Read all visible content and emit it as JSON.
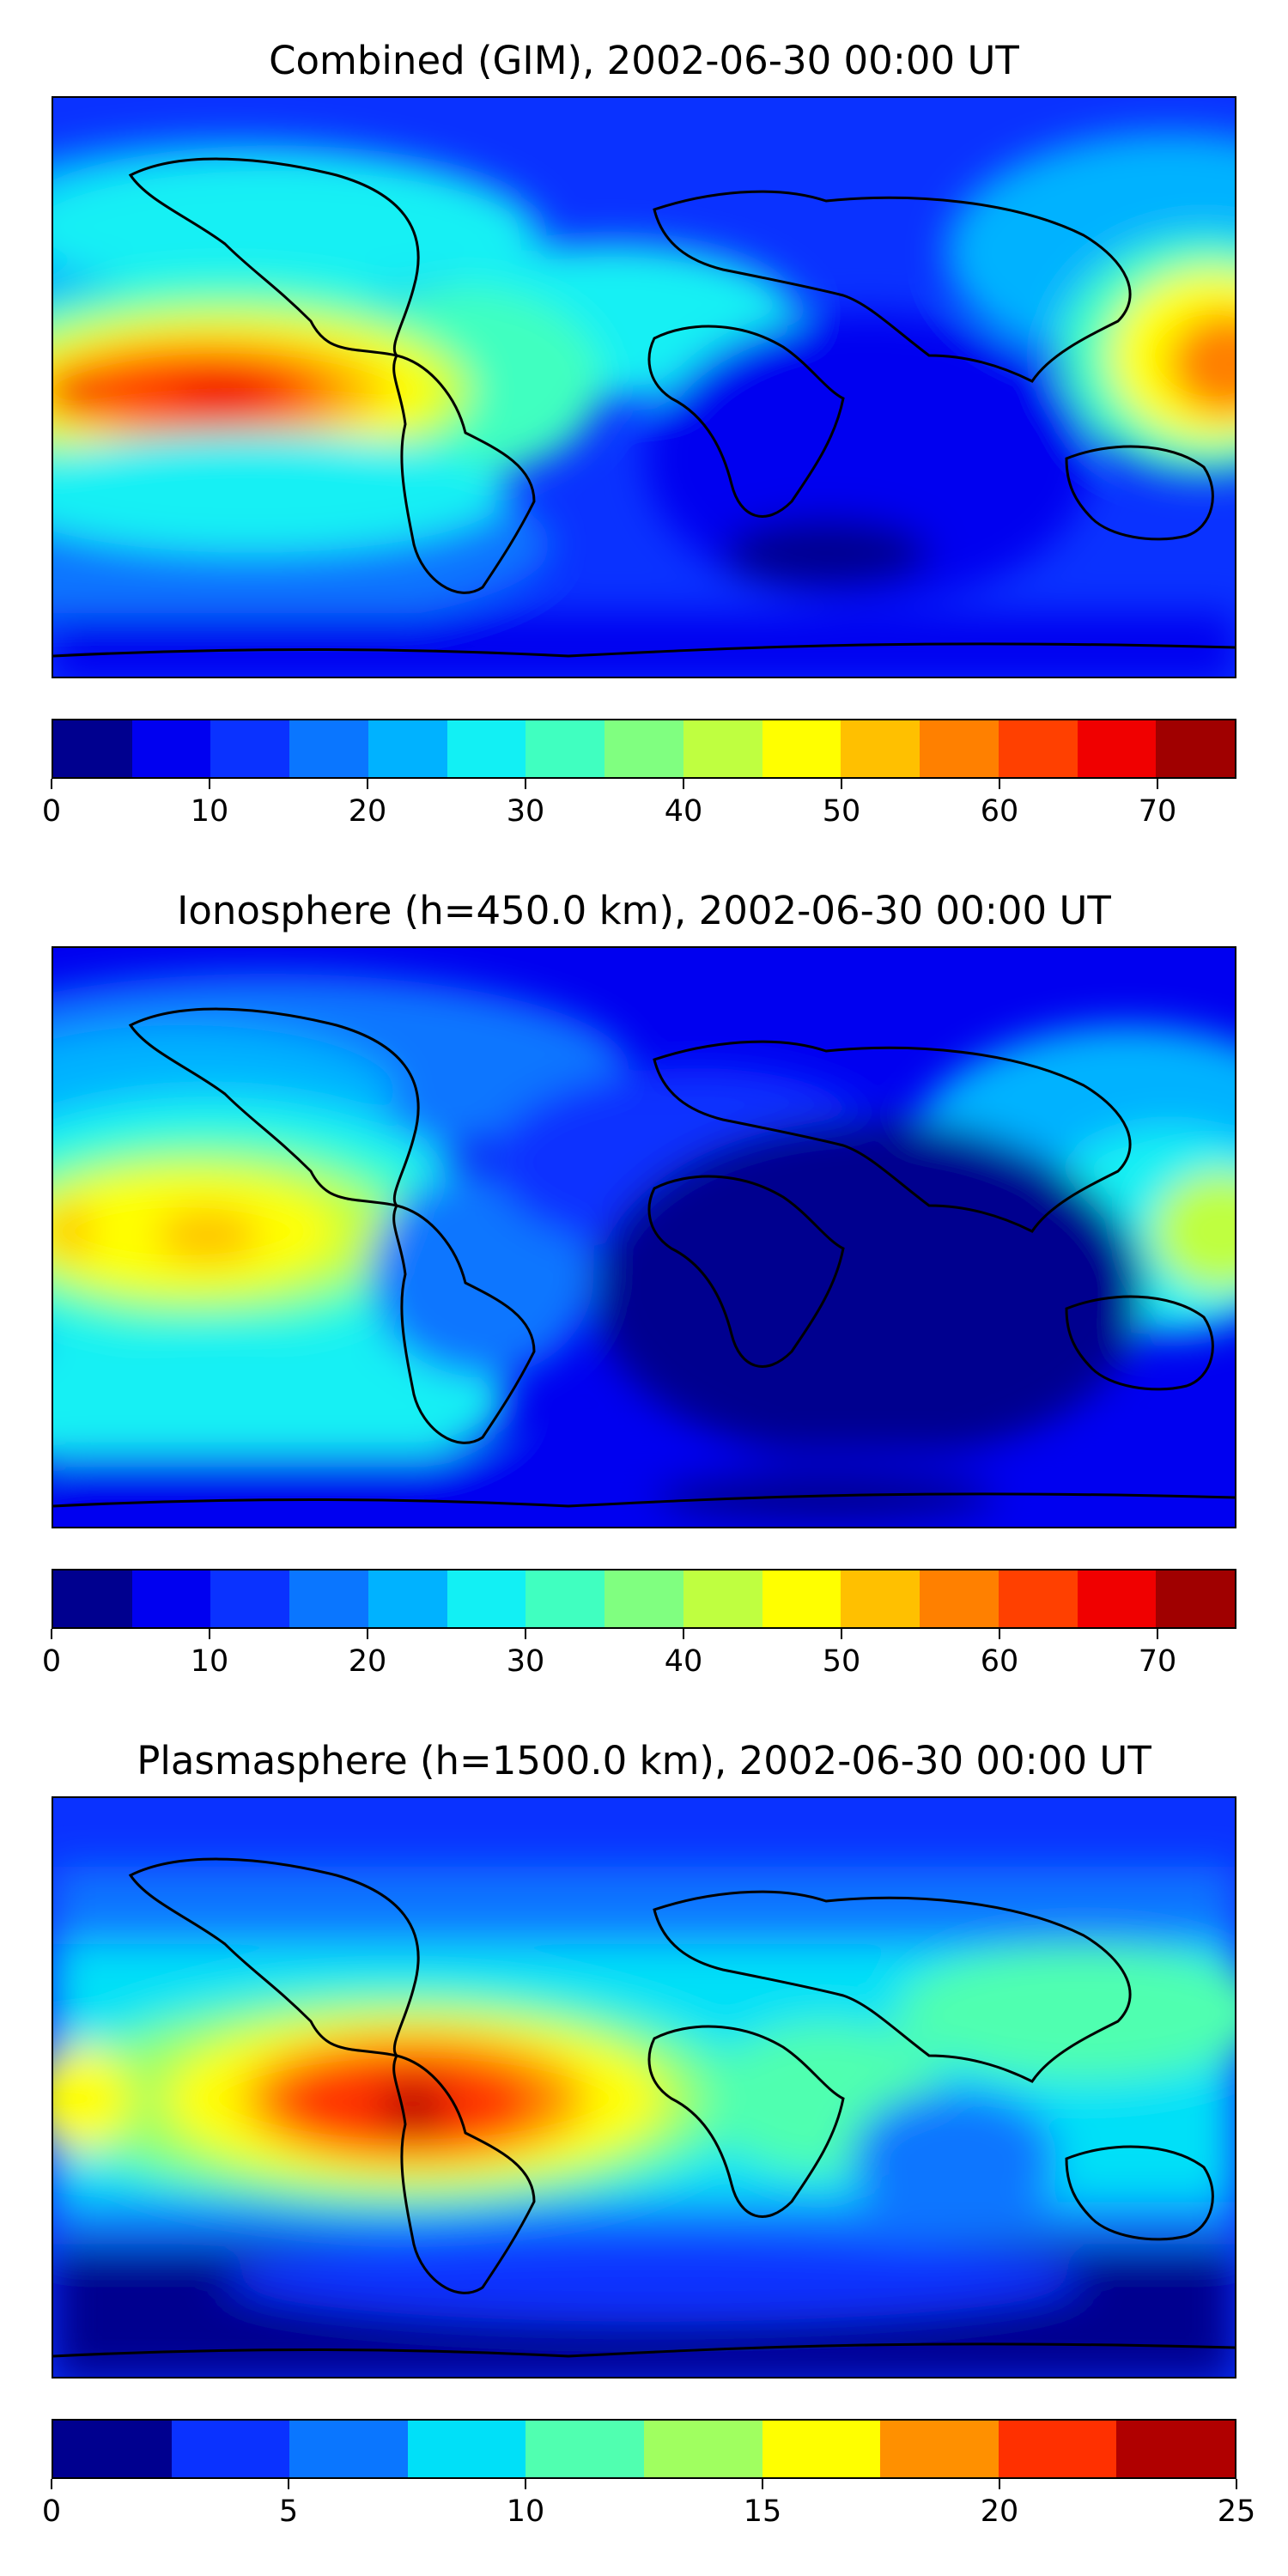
{
  "panels": [
    {
      "title": "Combined (GIM), 2002-06-30 00:00 UT",
      "colorbar": {
        "colors": [
          "#00008f",
          "#0000f0",
          "#0a32ff",
          "#0a76ff",
          "#00b2ff",
          "#12f0f4",
          "#40ffc0",
          "#80ff80",
          "#bfff40",
          "#ffff00",
          "#ffc000",
          "#ff8000",
          "#ff4000",
          "#f00000",
          "#a00000"
        ],
        "ticks": [
          "0",
          "10",
          "20",
          "30",
          "40",
          "50",
          "60",
          "70"
        ],
        "tick_values": [
          0,
          10,
          20,
          30,
          40,
          50,
          60,
          70
        ],
        "range": [
          0,
          75
        ]
      },
      "field": {
        "base": "#0a32ff"
      }
    },
    {
      "title": "Ionosphere  (h=450.0 km), 2002-06-30 00:00 UT",
      "colorbar": {
        "colors": [
          "#00008f",
          "#0000f0",
          "#0a32ff",
          "#0a76ff",
          "#00b2ff",
          "#12f0f4",
          "#40ffc0",
          "#80ff80",
          "#bfff40",
          "#ffff00",
          "#ffc000",
          "#ff8000",
          "#ff4000",
          "#f00000",
          "#a00000"
        ],
        "ticks": [
          "0",
          "10",
          "20",
          "30",
          "40",
          "50",
          "60",
          "70"
        ],
        "tick_values": [
          0,
          10,
          20,
          30,
          40,
          50,
          60,
          70
        ],
        "range": [
          0,
          75
        ]
      },
      "field": {
        "base": "#0000f0"
      }
    },
    {
      "title": "Plasmasphere (h=1500.0 km), 2002-06-30 00:00 UT",
      "colorbar": {
        "colors": [
          "#00008f",
          "#0a32ff",
          "#0a76ff",
          "#00e0f8",
          "#50ffb0",
          "#a0ff60",
          "#ffff00",
          "#ff9000",
          "#ff3000",
          "#b00000"
        ],
        "ticks": [
          "0",
          "5",
          "10",
          "15",
          "20",
          "25"
        ],
        "tick_values": [
          0,
          5,
          10,
          15,
          20,
          25
        ],
        "range": [
          0,
          25
        ]
      },
      "field": {
        "base": "#0a32ff"
      }
    }
  ]
}
